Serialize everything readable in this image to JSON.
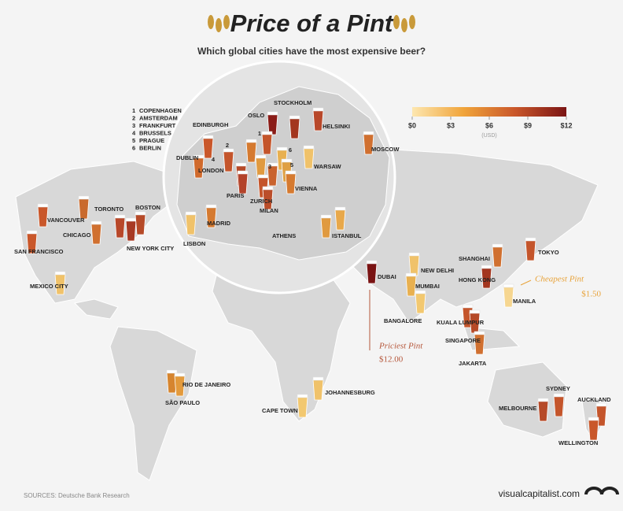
{
  "header": {
    "title": "Price of a Pint",
    "subtitle": "Which global cities have the most expensive beer?"
  },
  "legend": {
    "range": [
      0,
      12
    ],
    "ticks": [
      {
        "value": 0,
        "label": "$0"
      },
      {
        "value": 3,
        "label": "$3"
      },
      {
        "value": 6,
        "label": "$6"
      },
      {
        "value": 9,
        "label": "$9"
      },
      {
        "value": 12,
        "label": "$12"
      }
    ],
    "unit": "(USD)",
    "colors": [
      "#fde7b0",
      "#f0a43a",
      "#c9572a",
      "#7a1414"
    ]
  },
  "numbered_cities": [
    {
      "number": "1",
      "name": "COPENHAGEN"
    },
    {
      "number": "2",
      "name": "AMSTERDAM"
    },
    {
      "number": "3",
      "name": "FRANKFURT"
    },
    {
      "number": "4",
      "name": "BRUSSELS"
    },
    {
      "number": "5",
      "name": "PRAGUE"
    },
    {
      "number": "6",
      "name": "BERLIN"
    }
  ],
  "map_numbers": [
    "1",
    "2",
    "3",
    "4",
    "5",
    "6"
  ],
  "cities": [
    "OSLO",
    "STOCKHOLM",
    "HELSINKI",
    "EDINBURGH",
    "DUBLIN",
    "LONDON",
    "PARIS",
    "ZURICH",
    "MILAN",
    "VIENNA",
    "WARSAW",
    "MOSCOW",
    "VANCOUVER",
    "TORONTO",
    "BOSTON",
    "CHICAGO",
    "SAN FRANCISCO",
    "NEW YORK CITY",
    "MEXICO CITY",
    "LISBON",
    "MADRID",
    "ATHENS",
    "ISTANBUL",
    "DUBAI",
    "NEW DELHI",
    "MUMBAI",
    "BANGALORE",
    "SHANGHAI",
    "HONG KONG",
    "TOKYO",
    "MANILA",
    "KUALA LUMPUR",
    "SINGAPORE",
    "JAKARTA",
    "SYDNEY",
    "MELBOURNE",
    "AUCKLAND",
    "WELLINGTON",
    "RIO DE JANEIRO",
    "SÃO PAULO",
    "JOHANNESBURG",
    "CAPE TOWN"
  ],
  "annotations": {
    "cheapest": {
      "label": "Cheapest Pint",
      "price": "$1.50"
    },
    "priciest": {
      "label": "Priciest Pint",
      "price": "$12.00"
    }
  },
  "footer": {
    "sources": "SOURCES: Deutsche Bank Research",
    "brand": "visualcapitalist.com"
  }
}
